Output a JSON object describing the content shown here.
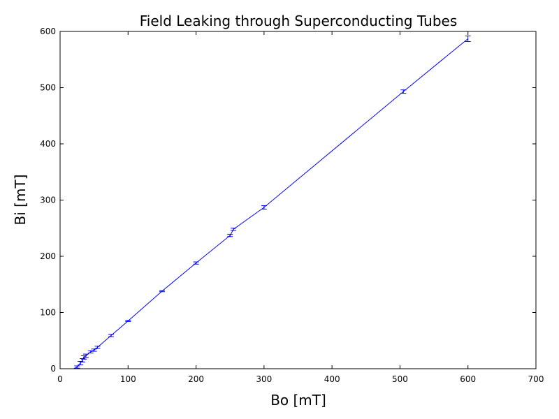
{
  "chart_data": {
    "type": "line",
    "title": "Field Leaking through Superconducting Tubes",
    "xlabel": "Bo [mT]",
    "ylabel": "Bi [mT]",
    "xlim": [
      0,
      700
    ],
    "ylim": [
      0,
      600
    ],
    "xticks": [
      0,
      100,
      200,
      300,
      400,
      500,
      600,
      700
    ],
    "yticks": [
      0,
      100,
      200,
      300,
      400,
      500,
      600
    ],
    "xtick_labels": [
      "0",
      "100",
      "200",
      "300",
      "400",
      "500",
      "600",
      "700"
    ],
    "ytick_labels": [
      "0",
      "100",
      "200",
      "300",
      "400",
      "500",
      "600"
    ],
    "grid": false,
    "legend": "none",
    "series": [
      {
        "color": "#0000ff",
        "x": [
          0,
          20,
          25,
          30,
          33,
          35,
          38,
          45,
          50,
          55,
          75,
          100,
          150,
          200,
          250,
          255,
          300,
          505,
          600
        ],
        "y": [
          0,
          0,
          3,
          10,
          15,
          20,
          23,
          30,
          33,
          38,
          59,
          85,
          138,
          188,
          237,
          248,
          287,
          493,
          587
        ],
        "yerr": [
          0,
          0,
          2,
          3,
          3,
          3,
          3,
          2,
          2,
          2,
          2,
          1,
          1,
          2,
          2,
          2,
          3,
          3,
          5
        ]
      }
    ]
  }
}
